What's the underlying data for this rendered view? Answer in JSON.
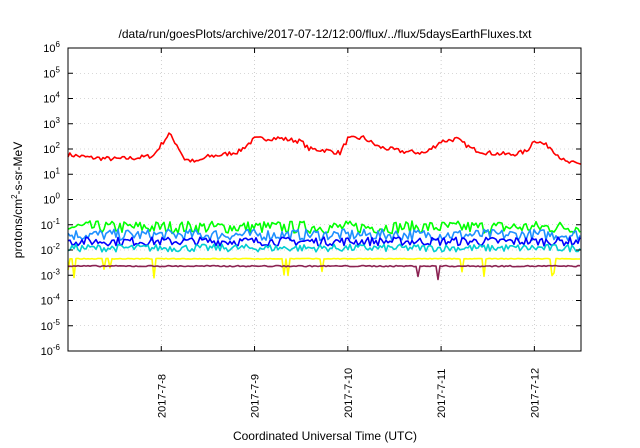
{
  "chart_data": {
    "type": "line",
    "title": "/data/run/goesPlots/archive/2017-07-12/12:00/flux/../flux/5daysEarthFluxes.txt",
    "xlabel": "Coordinated Universal Time (UTC)",
    "ylabel": "protons/cm²-s-sr-MeV",
    "ylabel_parts": {
      "pre": "protons/cm",
      "sup": "2",
      "post": "-s-sr-MeV"
    },
    "yscale": "log",
    "ylim_exp": [
      -6,
      6
    ],
    "y_tick_exponents": [
      -6,
      -5,
      -4,
      -3,
      -2,
      -1,
      0,
      1,
      2,
      3,
      4,
      5,
      6
    ],
    "y_tick_base": "10",
    "x_range_days": [
      "2017-07-07 00:00",
      "2017-07-12 12:00"
    ],
    "x_ticks": [
      {
        "label": "2017-7-8",
        "day": 8
      },
      {
        "label": "2017-7-9",
        "day": 9
      },
      {
        "label": "2017-7-10",
        "day": 10
      },
      {
        "label": "2017-7-11",
        "day": 11
      },
      {
        "label": "2017-7-12",
        "day": 12
      }
    ],
    "grid": true,
    "legend": "none",
    "series": [
      {
        "color": "#ff0000",
        "points": [
          [
            "2017-07-07 00:00",
            60
          ],
          [
            "2017-07-07 06:00",
            45
          ],
          [
            "2017-07-07 12:00",
            40
          ],
          [
            "2017-07-07 18:00",
            45
          ],
          [
            "2017-07-07 22:00",
            55
          ],
          [
            "2017-07-08 00:00",
            150
          ],
          [
            "2017-07-08 02:00",
            400
          ],
          [
            "2017-07-08 04:00",
            150
          ],
          [
            "2017-07-08 06:00",
            40
          ],
          [
            "2017-07-08 09:00",
            30
          ],
          [
            "2017-07-08 12:00",
            50
          ],
          [
            "2017-07-08 16:00",
            60
          ],
          [
            "2017-07-08 20:00",
            80
          ],
          [
            "2017-07-09 00:00",
            250
          ],
          [
            "2017-07-09 06:00",
            270
          ],
          [
            "2017-07-09 12:00",
            200
          ],
          [
            "2017-07-09 14:00",
            100
          ],
          [
            "2017-07-09 18:00",
            90
          ],
          [
            "2017-07-09 22:00",
            70
          ],
          [
            "2017-07-10 00:00",
            250
          ],
          [
            "2017-07-10 04:00",
            280
          ],
          [
            "2017-07-10 08:00",
            120
          ],
          [
            "2017-07-10 14:00",
            80
          ],
          [
            "2017-07-10 20:00",
            70
          ],
          [
            "2017-07-11 00:00",
            200
          ],
          [
            "2017-07-11 04:00",
            250
          ],
          [
            "2017-07-11 08:00",
            100
          ],
          [
            "2017-07-11 12:00",
            70
          ],
          [
            "2017-07-11 18:00",
            60
          ],
          [
            "2017-07-11 22:00",
            80
          ],
          [
            "2017-07-12 00:00",
            230
          ],
          [
            "2017-07-12 04:00",
            120
          ],
          [
            "2017-07-12 08:00",
            30
          ],
          [
            "2017-07-12 12:00",
            25
          ]
        ]
      },
      {
        "color": "#00ff00",
        "level": 0.08,
        "noise": 0.5
      },
      {
        "color": "#1e90ff",
        "level": 0.04,
        "noise": 0.45
      },
      {
        "color": "#0000ff",
        "level": 0.022,
        "noise": 0.35
      },
      {
        "color": "#00ced1",
        "level": 0.012,
        "noise": 0.3
      },
      {
        "color": "#ffff00",
        "level": 0.0045,
        "noise": 0.03
      },
      {
        "color": "#8b2252",
        "level": 0.0023,
        "noise": 0.05
      }
    ]
  }
}
